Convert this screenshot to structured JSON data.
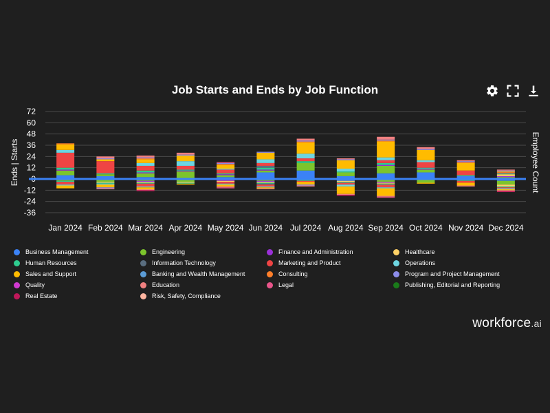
{
  "chart_data": {
    "type": "bar",
    "stacked": true,
    "title": "Job Starts and Ends by Job Function",
    "ylabel": "Ends | Starts",
    "y2label": "Employee Count",
    "ylim": [
      -36,
      72
    ],
    "yticks": [
      -36,
      -24,
      -12,
      0,
      12,
      24,
      36,
      48,
      60,
      72
    ],
    "categories": [
      "Jan 2024",
      "Feb 2024",
      "Mar 2024",
      "Apr 2024",
      "May 2024",
      "Jun 2024",
      "Jul 2024",
      "Aug 2024",
      "Sep 2024",
      "Oct 2024",
      "Nov 2024",
      "Dec 2024"
    ],
    "series": [
      {
        "name": "Business Management",
        "color": "#3b82f6",
        "starts": [
          4,
          3,
          2,
          0,
          2,
          7,
          9,
          3,
          6,
          7,
          3,
          1
        ],
        "ends": [
          -1,
          -1,
          -1,
          0,
          -1,
          -1,
          0,
          -2,
          -1,
          0,
          -1,
          -2
        ]
      },
      {
        "name": "Engineering",
        "color": "#7cc42c",
        "starts": [
          5,
          2,
          4,
          8,
          2,
          2,
          8,
          4,
          8,
          3,
          0,
          1
        ],
        "ends": [
          -1,
          -2,
          -1,
          -3,
          0,
          -1,
          -1,
          0,
          -2,
          -4,
          0,
          -4
        ]
      },
      {
        "name": "Finance and Administration",
        "color": "#9b30d9",
        "starts": [
          1,
          0,
          1,
          1,
          1,
          1,
          0,
          0,
          1,
          1,
          0,
          1
        ],
        "ends": [
          0,
          0,
          -1,
          0,
          -1,
          -1,
          0,
          0,
          -1,
          0,
          0,
          0
        ]
      },
      {
        "name": "Healthcare",
        "color": "#ffd166",
        "starts": [
          0,
          0,
          0,
          0,
          0,
          0,
          0,
          0,
          0,
          0,
          0,
          2
        ],
        "ends": [
          0,
          -1,
          -1,
          -1,
          -1,
          -1,
          0,
          -1,
          -1,
          0,
          0,
          -2
        ]
      },
      {
        "name": "Human Resources",
        "color": "#2ecc8f",
        "starts": [
          2,
          1,
          2,
          1,
          1,
          2,
          2,
          1,
          2,
          1,
          1,
          1
        ],
        "ends": [
          -1,
          -1,
          -1,
          -1,
          0,
          -1,
          -1,
          -1,
          -1,
          0,
          -1,
          -1
        ]
      },
      {
        "name": "Information Technology",
        "color": "#5a6e80",
        "starts": [
          0,
          0,
          0,
          0,
          0,
          2,
          0,
          0,
          0,
          0,
          0,
          0
        ],
        "ends": [
          0,
          0,
          0,
          0,
          0,
          -1,
          0,
          0,
          0,
          0,
          0,
          0
        ]
      },
      {
        "name": "Marketing and Product",
        "color": "#ef4444",
        "starts": [
          16,
          13,
          5,
          4,
          4,
          3,
          3,
          0,
          3,
          6,
          5,
          1
        ],
        "ends": [
          -3,
          0,
          -3,
          0,
          -2,
          -2,
          -1,
          -2,
          -3,
          0,
          -2,
          -1
        ]
      },
      {
        "name": "Operations",
        "color": "#6dd5e0",
        "starts": [
          3,
          0,
          3,
          5,
          1,
          4,
          5,
          3,
          3,
          2,
          0,
          0
        ],
        "ends": [
          -1,
          -1,
          -1,
          0,
          -1,
          -1,
          0,
          -2,
          -1,
          0,
          0,
          -1
        ]
      },
      {
        "name": "Sales and Support",
        "color": "#ffbb00",
        "starts": [
          6,
          2,
          4,
          6,
          4,
          7,
          12,
          9,
          17,
          11,
          8,
          1
        ],
        "ends": [
          -3,
          -3,
          -2,
          -1,
          -2,
          -1,
          -3,
          -8,
          -8,
          -1,
          -3,
          -1
        ]
      },
      {
        "name": "Banking and Wealth Management",
        "color": "#5b9bd5",
        "starts": [
          0,
          0,
          0,
          0,
          0,
          0,
          0,
          0,
          0,
          0,
          0,
          0
        ],
        "ends": [
          0,
          0,
          0,
          0,
          0,
          0,
          0,
          0,
          0,
          0,
          0,
          0
        ]
      },
      {
        "name": "Consulting",
        "color": "#ff7f2a",
        "starts": [
          1,
          0,
          1,
          0,
          1,
          0,
          1,
          0,
          1,
          0,
          1,
          0
        ],
        "ends": [
          0,
          0,
          0,
          0,
          0,
          0,
          0,
          0,
          0,
          0,
          0,
          0
        ]
      },
      {
        "name": "Program and Project Management",
        "color": "#8b8be8",
        "starts": [
          0,
          1,
          1,
          1,
          1,
          1,
          1,
          1,
          1,
          1,
          1,
          1
        ],
        "ends": [
          0,
          -1,
          0,
          0,
          0,
          0,
          -1,
          0,
          0,
          0,
          0,
          0
        ]
      },
      {
        "name": "Quality",
        "color": "#d13ad1",
        "starts": [
          0,
          0,
          0,
          0,
          0,
          0,
          0,
          0,
          0,
          0,
          0,
          0
        ],
        "ends": [
          0,
          0,
          0,
          0,
          0,
          0,
          0,
          0,
          0,
          0,
          0,
          0
        ]
      },
      {
        "name": "Education",
        "color": "#f08080",
        "starts": [
          0,
          2,
          2,
          2,
          0,
          0,
          2,
          1,
          3,
          2,
          1,
          1
        ],
        "ends": [
          0,
          -1,
          -1,
          0,
          -1,
          -1,
          -1,
          -1,
          -1,
          0,
          -1,
          -1
        ]
      },
      {
        "name": "Legal",
        "color": "#e8558a",
        "starts": [
          0,
          0,
          0,
          0,
          1,
          0,
          0,
          0,
          0,
          0,
          0,
          0
        ],
        "ends": [
          0,
          0,
          0,
          0,
          -1,
          0,
          0,
          0,
          -1,
          0,
          0,
          0
        ]
      },
      {
        "name": "Publishing, Editorial and Reporting",
        "color": "#1a7a1a",
        "starts": [
          0,
          0,
          0,
          0,
          0,
          0,
          0,
          0,
          0,
          0,
          0,
          0
        ],
        "ends": [
          0,
          0,
          0,
          0,
          0,
          0,
          0,
          0,
          0,
          0,
          0,
          0
        ]
      },
      {
        "name": "Real Estate",
        "color": "#c0185a",
        "starts": [
          0,
          0,
          0,
          0,
          0,
          0,
          0,
          0,
          0,
          0,
          0,
          0
        ],
        "ends": [
          0,
          0,
          -1,
          0,
          0,
          0,
          0,
          -1,
          0,
          0,
          0,
          -1
        ]
      },
      {
        "name": "Risk, Safety, Compliance",
        "color": "#ffb5a0",
        "starts": [
          0,
          0,
          0,
          0,
          0,
          0,
          0,
          0,
          0,
          0,
          0,
          0
        ],
        "ends": [
          0,
          0,
          0,
          0,
          0,
          0,
          0,
          0,
          0,
          0,
          0,
          0
        ]
      }
    ]
  },
  "toolbar": {
    "settings": "gear-icon",
    "fullscreen": "expand-icon",
    "download": "download-icon"
  },
  "brand": {
    "name": "workforce",
    "suffix": ".ai"
  },
  "colors": {
    "background": "#1f1f1f",
    "grid": "#4a4a4a",
    "zero_line": "#3b82f6"
  }
}
